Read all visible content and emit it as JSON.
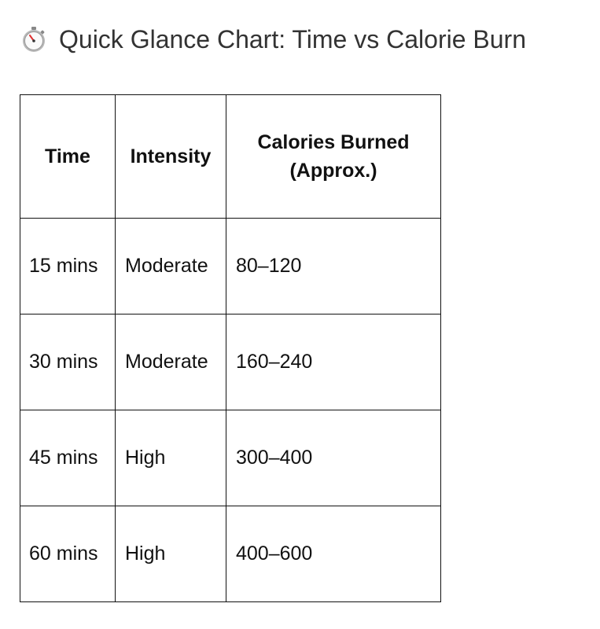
{
  "title": "Quick Glance Chart: Time vs Calorie Burn",
  "table": {
    "header": [
      "Time",
      "Intensity",
      "Calories Burned (Approx.)"
    ],
    "rows": [
      [
        "15 mins",
        "Moderate",
        "80–120"
      ],
      [
        "30 mins",
        "Moderate",
        "160–240"
      ],
      [
        "45 mins",
        "High",
        "300–400"
      ],
      [
        "60 mins",
        "High",
        "400–600"
      ]
    ]
  }
}
